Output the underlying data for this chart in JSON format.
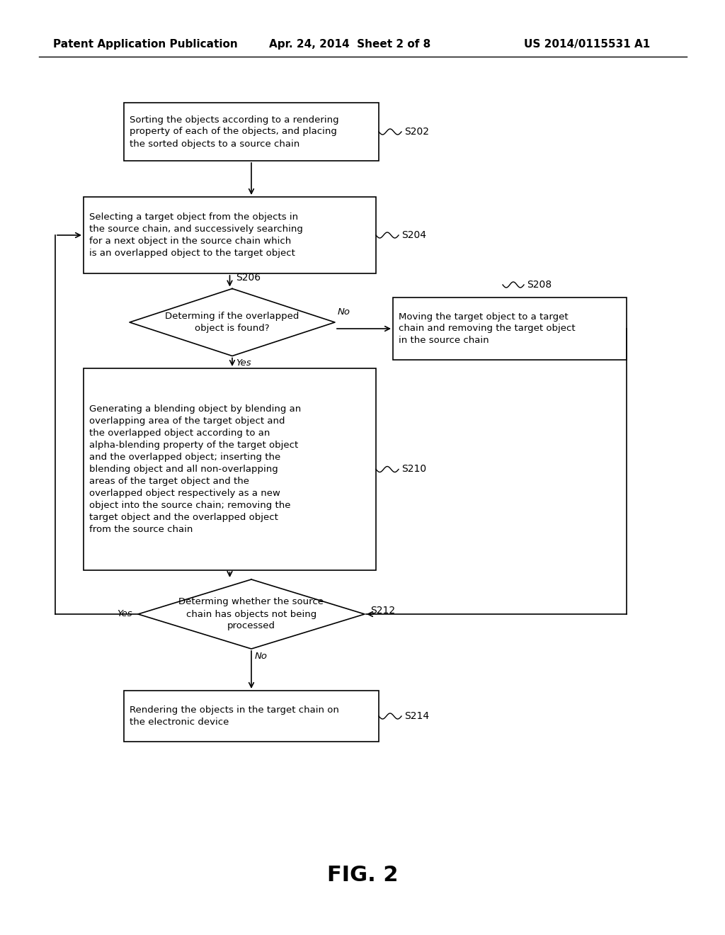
{
  "bg_color": "#ffffff",
  "text_color": "#000000",
  "header_text": "Patent Application Publication",
  "header_date": "Apr. 24, 2014  Sheet 2 of 8",
  "header_patent": "US 2014/0115531 A1",
  "figure_label": "FIG. 2",
  "s202_text": "Sorting the objects according to a rendering\nproperty of each of the objects, and placing\nthe sorted objects to a source chain",
  "s204_text": "Selecting a target object from the objects in\nthe source chain, and successively searching\nfor a next object in the source chain which\nis an overlapped object to the target object",
  "s206_text": "Determing if the overlapped\nobject is found?",
  "s208_text": "Moving the target object to a target\nchain and removing the target object\nin the source chain",
  "s210_text": "Generating a blending object by blending an\noverlapping area of the target object and\nthe overlapped object according to an\nalpha-blending property of the target object\nand the overlapped object; inserting the\nblending object and all non-overlapping\nareas of the target object and the\noverlapped object respectively as a new\nobject into the source chain; removing the\ntarget object and the overlapped object\nfrom the source chain",
  "s212_text": "Determing whether the source\nchain has objects not being\nprocessed",
  "s214_text": "Rendering the objects in the target chain on\nthe electronic device"
}
